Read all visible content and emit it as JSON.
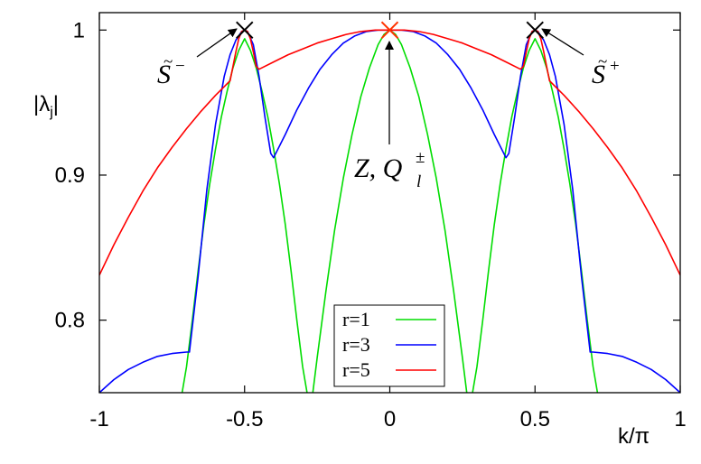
{
  "chart_data": {
    "type": "line",
    "xlabel": "k/π",
    "ylabel_main": "|λ",
    "ylabel_sub": "j",
    "ylabel_end": "|",
    "xlim": [
      -1,
      1
    ],
    "ylim": [
      0.75,
      1.012
    ],
    "xticks": [
      "-1",
      "-0.5",
      "0",
      "0.5",
      "1"
    ],
    "yticks": [
      "0.8",
      "0.9",
      "1"
    ],
    "grid": false,
    "legend_position": "bottom-center",
    "series": [
      {
        "name": "r=1",
        "color": "#00dd00",
        "x": [
          -0.715,
          -0.7,
          -0.68,
          -0.66,
          -0.64,
          -0.62,
          -0.6,
          -0.58,
          -0.56,
          -0.54,
          -0.52,
          -0.5,
          -0.48,
          -0.46,
          -0.44,
          -0.42,
          -0.4,
          -0.38,
          -0.36,
          -0.34,
          -0.32,
          -0.3,
          -0.285
        ],
        "y": [
          0.75,
          0.766,
          0.787,
          0.808,
          0.829,
          0.85,
          0.87,
          0.89,
          0.93,
          0.965,
          0.99,
          0.998,
          0.99,
          0.965,
          0.93,
          0.89,
          0.87,
          0.85,
          0.829,
          0.808,
          0.787,
          0.766,
          0.75
        ],
        "segments": [
          {
            "x": [
              -0.715,
              -0.7,
              -0.68,
              -0.66,
              -0.64,
              -0.62,
              -0.6,
              -0.58,
              -0.56,
              -0.54,
              -0.52,
              -0.5,
              -0.48,
              -0.46,
              -0.44,
              -0.42,
              -0.4,
              -0.38,
              -0.36,
              -0.34,
              -0.32,
              -0.3,
              -0.285
            ],
            "y": [
              0.75,
              0.768,
              0.8,
              0.834,
              0.866,
              0.894,
              0.918,
              0.94,
              0.958,
              0.974,
              0.986,
              0.994,
              0.986,
              0.974,
              0.958,
              0.94,
              0.918,
              0.894,
              0.866,
              0.834,
              0.8,
              0.768,
              0.75
            ]
          },
          {
            "x": [
              -0.265,
              -0.25,
              -0.22,
              -0.19,
              -0.16,
              -0.13,
              -0.1,
              -0.07,
              -0.04,
              -0.02,
              0,
              0.02,
              0.04,
              0.07,
              0.1,
              0.13,
              0.16,
              0.19,
              0.22,
              0.25,
              0.265
            ],
            "y": [
              0.75,
              0.774,
              0.82,
              0.862,
              0.898,
              0.928,
              0.954,
              0.974,
              0.99,
              0.997,
              1.0,
              0.997,
              0.99,
              0.974,
              0.954,
              0.928,
              0.898,
              0.862,
              0.82,
              0.774,
              0.75
            ]
          },
          {
            "x": [
              0.285,
              0.3,
              0.32,
              0.34,
              0.36,
              0.38,
              0.4,
              0.42,
              0.44,
              0.46,
              0.48,
              0.5,
              0.52,
              0.54,
              0.56,
              0.58,
              0.6,
              0.62,
              0.64,
              0.66,
              0.68,
              0.7,
              0.715
            ],
            "y": [
              0.75,
              0.768,
              0.8,
              0.834,
              0.866,
              0.894,
              0.918,
              0.94,
              0.958,
              0.974,
              0.986,
              0.994,
              0.986,
              0.974,
              0.958,
              0.94,
              0.918,
              0.894,
              0.866,
              0.834,
              0.8,
              0.768,
              0.75
            ]
          }
        ]
      },
      {
        "name": "r=3",
        "color": "#0000ff",
        "segments": [
          {
            "x": [
              -1.0,
              -0.95,
              -0.9,
              -0.85,
              -0.8,
              -0.75,
              -0.7,
              -0.69,
              -0.66,
              -0.63,
              -0.6,
              -0.57,
              -0.55,
              -0.53,
              -0.51,
              -0.5,
              -0.49,
              -0.47,
              -0.45,
              -0.43,
              -0.41,
              -0.4,
              -0.36,
              -0.32,
              -0.28,
              -0.24,
              -0.2,
              -0.16,
              -0.12,
              -0.08,
              -0.04,
              0,
              0.04,
              0.08,
              0.12,
              0.16,
              0.2,
              0.24,
              0.28,
              0.32,
              0.36,
              0.4,
              0.41,
              0.43,
              0.45,
              0.47,
              0.49,
              0.5,
              0.51,
              0.53,
              0.55,
              0.57,
              0.6,
              0.63,
              0.66,
              0.69,
              0.7,
              0.75,
              0.8,
              0.85,
              0.9,
              0.95,
              1.0
            ],
            "y": [
              0.75,
              0.759,
              0.766,
              0.771,
              0.775,
              0.777,
              0.778,
              0.778,
              0.83,
              0.89,
              0.935,
              0.968,
              0.983,
              0.993,
              0.999,
              1.0,
              0.999,
              0.99,
              0.968,
              0.94,
              0.915,
              0.912,
              0.928,
              0.945,
              0.96,
              0.973,
              0.983,
              0.991,
              0.996,
              0.999,
              1.0,
              1.0,
              1.0,
              0.999,
              0.996,
              0.991,
              0.983,
              0.973,
              0.96,
              0.945,
              0.928,
              0.912,
              0.915,
              0.94,
              0.968,
              0.99,
              0.999,
              1.0,
              0.999,
              0.993,
              0.983,
              0.968,
              0.935,
              0.89,
              0.83,
              0.778,
              0.778,
              0.777,
              0.775,
              0.771,
              0.766,
              0.759,
              0.75
            ]
          }
        ]
      },
      {
        "name": "r=5",
        "color": "#ff0000",
        "segments": [
          {
            "x": [
              -1.0,
              -0.95,
              -0.9,
              -0.85,
              -0.8,
              -0.75,
              -0.7,
              -0.65,
              -0.6,
              -0.55,
              -0.54,
              -0.53,
              -0.52,
              -0.51,
              -0.5,
              -0.49,
              -0.48,
              -0.47,
              -0.46,
              -0.45,
              -0.4,
              -0.35,
              -0.3,
              -0.25,
              -0.2,
              -0.15,
              -0.1,
              -0.05,
              0,
              0.05,
              0.1,
              0.15,
              0.2,
              0.25,
              0.3,
              0.35,
              0.4,
              0.45,
              0.46,
              0.47,
              0.48,
              0.49,
              0.5,
              0.51,
              0.52,
              0.53,
              0.54,
              0.55,
              0.6,
              0.65,
              0.7,
              0.75,
              0.8,
              0.85,
              0.9,
              0.95,
              1.0
            ],
            "y": [
              0.831,
              0.852,
              0.871,
              0.889,
              0.905,
              0.919,
              0.932,
              0.944,
              0.955,
              0.965,
              0.975,
              0.985,
              0.994,
              0.999,
              1.0,
              0.999,
              0.994,
              0.985,
              0.975,
              0.973,
              0.978,
              0.983,
              0.987,
              0.991,
              0.994,
              0.997,
              0.999,
              1.0,
              1.0,
              1.0,
              0.999,
              0.997,
              0.994,
              0.991,
              0.987,
              0.983,
              0.978,
              0.973,
              0.975,
              0.985,
              0.994,
              0.999,
              1.0,
              0.999,
              0.994,
              0.985,
              0.975,
              0.965,
              0.955,
              0.944,
              0.932,
              0.919,
              0.905,
              0.889,
              0.871,
              0.852,
              0.831
            ]
          }
        ]
      }
    ],
    "markers": [
      {
        "x": -0.5,
        "y": 1.0,
        "color": "#000000",
        "shape": "x"
      },
      {
        "x": 0.5,
        "y": 1.0,
        "color": "#000000",
        "shape": "x"
      },
      {
        "x": 0.0,
        "y": 1.0,
        "color": "#ff3300",
        "shape": "x"
      }
    ],
    "annotations": [
      {
        "id": "s-minus",
        "base": "S",
        "tilde": "~",
        "sup": "−"
      },
      {
        "id": "s-plus",
        "base": "S",
        "tilde": "~",
        "sup": "+"
      },
      {
        "id": "zq",
        "prefix": "Z, Q",
        "sup": "±",
        "sub": "l"
      }
    ]
  }
}
